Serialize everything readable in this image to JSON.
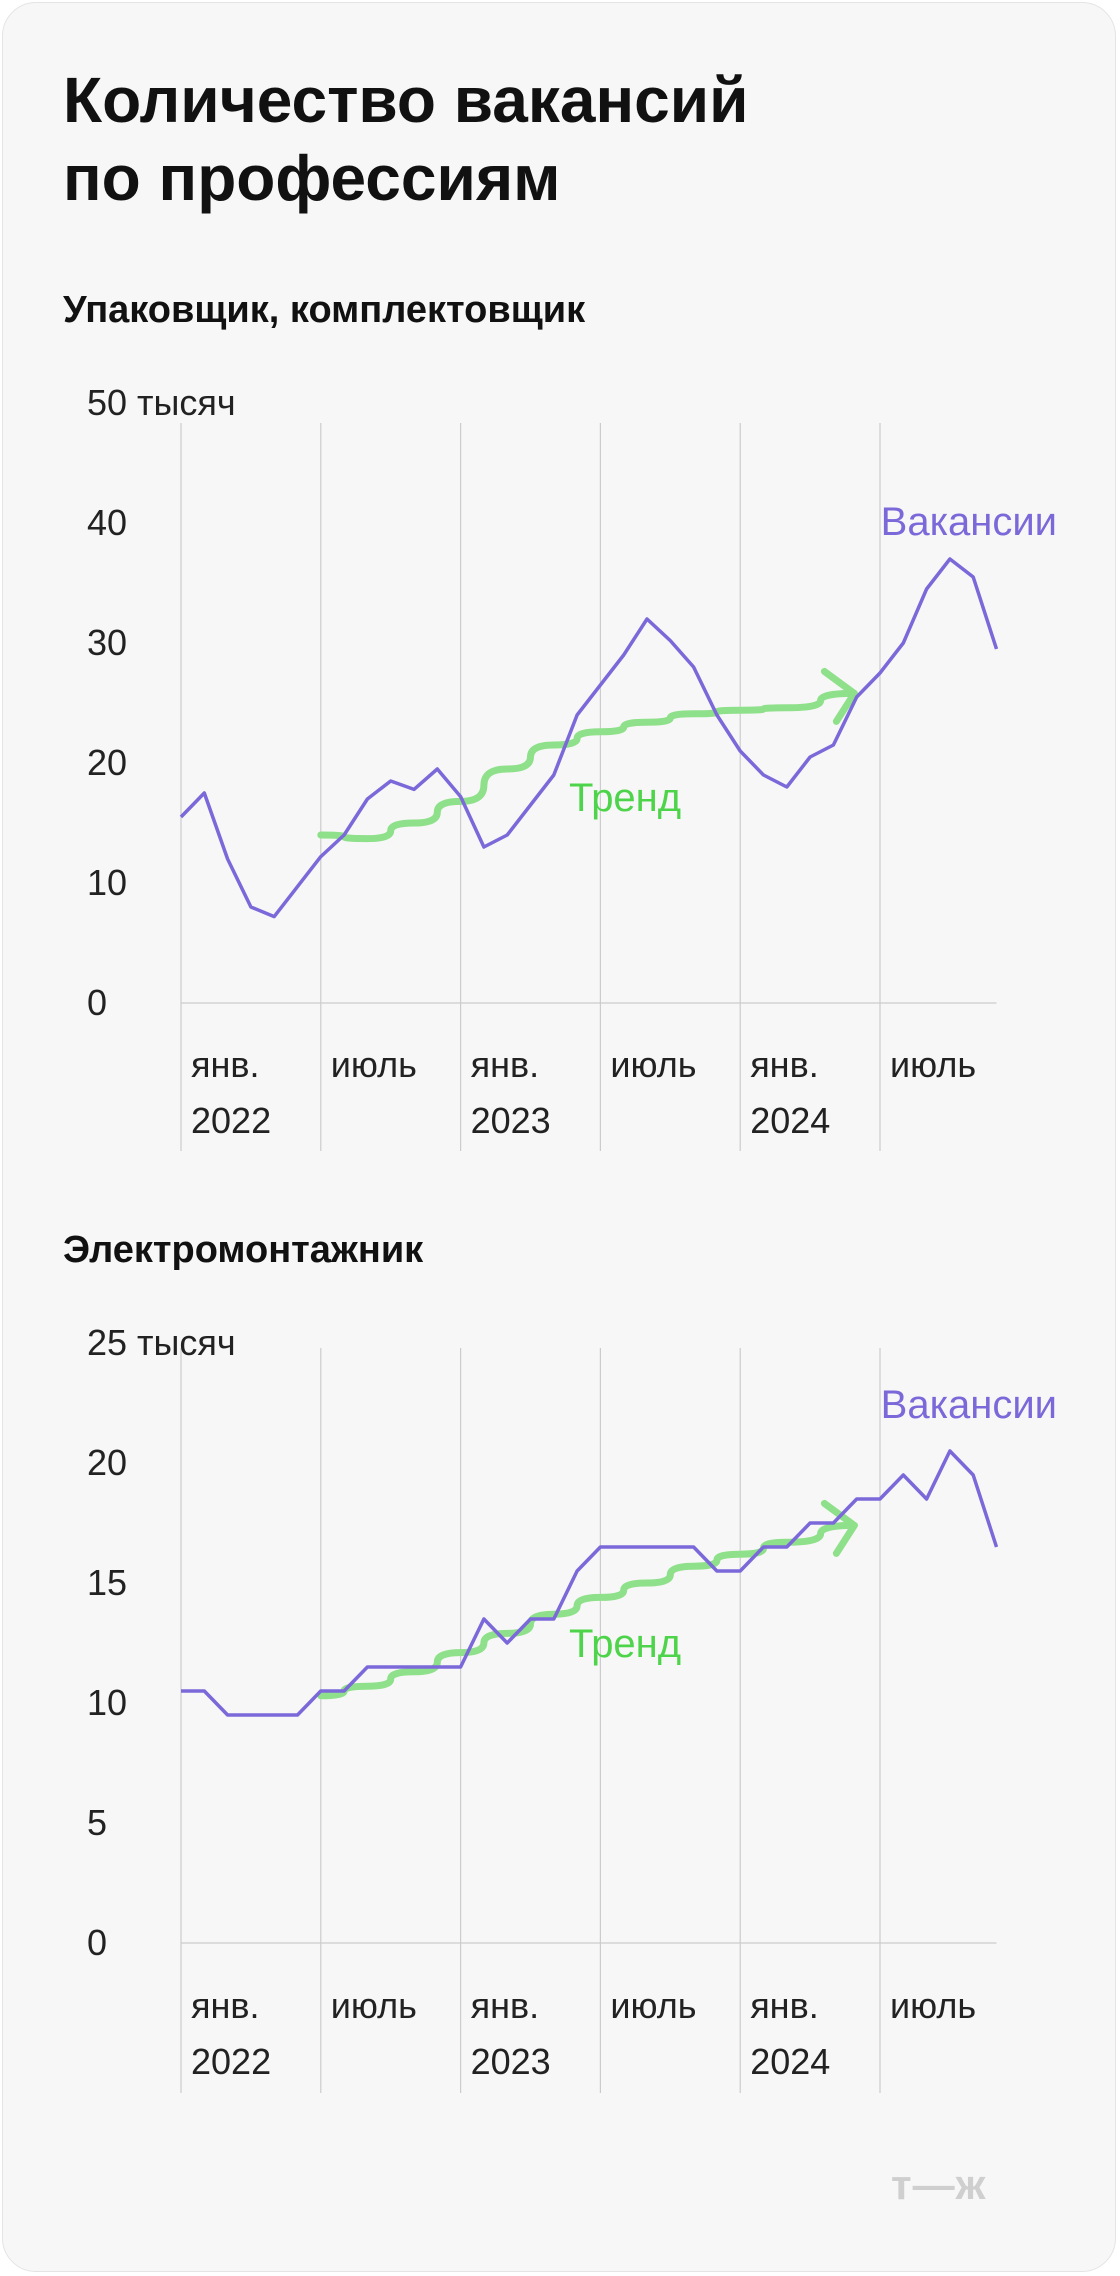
{
  "title": [
    "Количество вакансий",
    "по профессиям"
  ],
  "logo": "т—ж",
  "colors": {
    "vacancies": "#7b68d9",
    "trend": "#8fe08a",
    "trend_label": "#4ed44a",
    "grid": "#cccccc"
  },
  "chart_data": [
    {
      "type": "line",
      "title": "Упаковщик, комплектовщик",
      "ylim": [
        0,
        50
      ],
      "yticks": [
        "0",
        "10",
        "20",
        "30",
        "40",
        "50 тысяч"
      ],
      "x_ticks": [
        {
          "x": 0,
          "line1": "янв.",
          "line2": "2022"
        },
        {
          "x": 6,
          "line1": "июль",
          "line2": ""
        },
        {
          "x": 12,
          "line1": "янв.",
          "line2": "2023"
        },
        {
          "x": 18,
          "line1": "июль",
          "line2": ""
        },
        {
          "x": 24,
          "line1": "янв.",
          "line2": "2024"
        },
        {
          "x": 30,
          "line1": "июль",
          "line2": ""
        }
      ],
      "xlim": [
        0,
        35
      ],
      "series": [
        {
          "name": "Вакансии",
          "values": [
            15.5,
            17.5,
            12,
            8,
            7.2,
            9.7,
            12.2,
            14,
            17,
            18.5,
            17.8,
            19.5,
            17.2,
            13,
            14,
            16.5,
            19,
            24,
            26.5,
            29,
            32,
            30.2,
            28,
            24,
            21,
            19,
            18,
            20.5,
            21.5,
            25.5,
            27.5,
            30,
            34.5,
            37,
            35.5,
            29.5
          ]
        },
        {
          "name": "Тренд",
          "x": [
            6,
            8,
            10,
            12,
            14,
            16,
            18,
            20,
            22,
            24,
            26,
            28.9
          ],
          "values": [
            14,
            13.7,
            15,
            16.8,
            19.5,
            21.5,
            22.6,
            23.4,
            24.1,
            24.4,
            24.6,
            25.8
          ]
        }
      ]
    },
    {
      "type": "line",
      "title": "Электромонтажник",
      "ylim": [
        0,
        25
      ],
      "yticks": [
        "0",
        "5",
        "10",
        "15",
        "20",
        "25 тысяч"
      ],
      "x_ticks": [
        {
          "x": 0,
          "line1": "янв.",
          "line2": "2022"
        },
        {
          "x": 6,
          "line1": "июль",
          "line2": ""
        },
        {
          "x": 12,
          "line1": "янв.",
          "line2": "2023"
        },
        {
          "x": 18,
          "line1": "июль",
          "line2": ""
        },
        {
          "x": 24,
          "line1": "янв.",
          "line2": "2024"
        },
        {
          "x": 30,
          "line1": "июль",
          "line2": ""
        }
      ],
      "xlim": [
        0,
        35
      ],
      "series": [
        {
          "name": "Вакансии",
          "values": [
            10.5,
            10.5,
            9.5,
            9.5,
            9.5,
            9.5,
            10.5,
            10.5,
            11.5,
            11.5,
            11.5,
            11.5,
            11.5,
            13.5,
            12.5,
            13.5,
            13.5,
            15.5,
            16.5,
            16.5,
            16.5,
            16.5,
            16.5,
            15.5,
            15.5,
            16.5,
            16.5,
            17.5,
            17.5,
            18.5,
            18.5,
            19.5,
            18.5,
            20.5,
            19.5,
            16.5
          ]
        },
        {
          "name": "Тренд",
          "x": [
            6,
            8,
            10,
            12,
            14,
            16,
            18,
            20,
            22,
            24,
            26,
            28.9
          ],
          "values": [
            10.3,
            10.7,
            11.3,
            12.1,
            12.9,
            13.7,
            14.4,
            15,
            15.7,
            16.2,
            16.7,
            17.4
          ]
        }
      ]
    }
  ]
}
